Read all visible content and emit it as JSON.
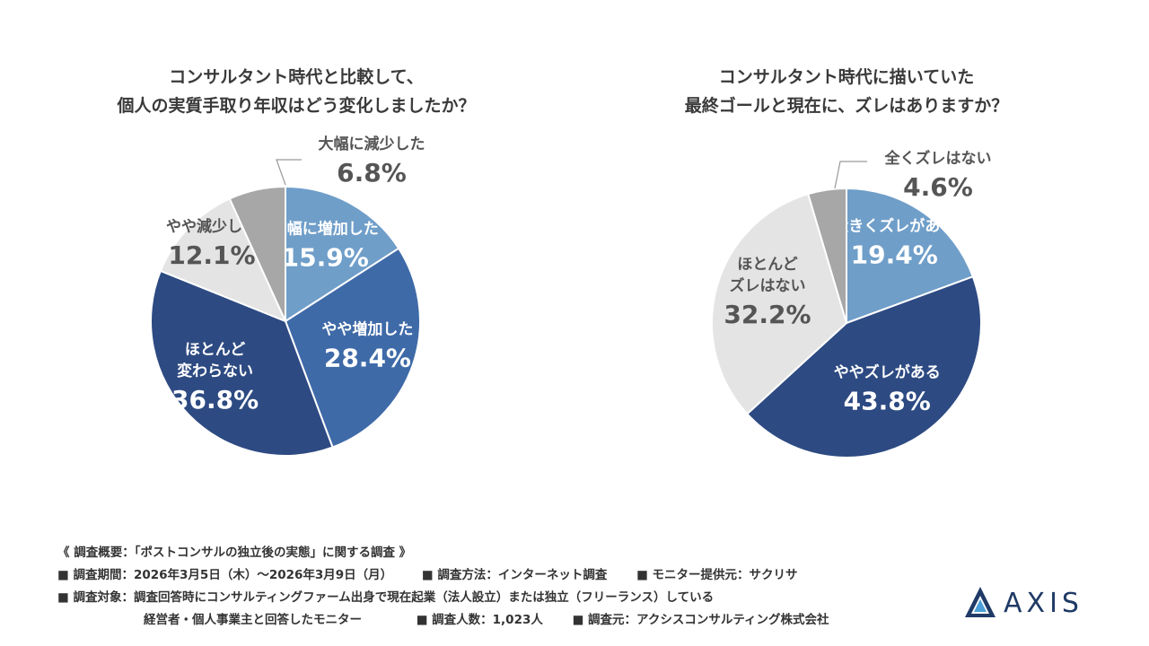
{
  "chart_data": [
    {
      "type": "pie",
      "title_lines": [
        "コンサルタント時代と比較して、",
        "個人の実質手取り年収はどう変化しましたか？"
      ],
      "slices": [
        {
          "label": "大幅に増加した",
          "value": 15.9,
          "display": "15.9%",
          "color": "#6f9ec9"
        },
        {
          "label": "やや増加した",
          "value": 28.4,
          "display": "28.4%",
          "color": "#3f6aa8"
        },
        {
          "label": "ほとんど\n変わらない",
          "value": 36.8,
          "display": "36.8%",
          "color": "#2d4a82"
        },
        {
          "label": "やや減少した",
          "value": 12.1,
          "display": "12.1%",
          "color": "#e4e4e4"
        },
        {
          "label": "大幅に減少した",
          "value": 6.8,
          "display": "6.8%",
          "color": "#a7a7a7"
        }
      ]
    },
    {
      "type": "pie",
      "title_lines": [
        "コンサルタント時代に描いていた",
        "最終ゴールと現在に、ズレはありますか？"
      ],
      "slices": [
        {
          "label": "大きくズレがある",
          "value": 19.4,
          "display": "19.4%",
          "color": "#6f9ec9"
        },
        {
          "label": "ややズレがある",
          "value": 43.8,
          "display": "43.8%",
          "color": "#2d4a82"
        },
        {
          "label": "ほとんど\nズレはない",
          "value": 32.2,
          "display": "32.2%",
          "color": "#e4e4e4"
        },
        {
          "label": "全くズレはない",
          "value": 4.6,
          "display": "4.6%",
          "color": "#a7a7a7"
        }
      ]
    }
  ],
  "footer": {
    "line1": "《 調査概要：「ポストコンサルの独立後の実態」に関する調査 》",
    "period": "■ 調査期間：2026年3月5日（木）〜2026年3月9日（月）",
    "method": "■ 調査方法：インターネット調査",
    "provider": "■ モニター提供元：サクリサ",
    "target": "■ 調査対象：調査回答時にコンサルティングファーム出身で現在起業（法人設立）または独立（フリーランス）している",
    "target_cont": "経営者・個人事業主と回答したモニター",
    "count": "■ 調査人数：1,023人",
    "source": "■ 調査元：アクシスコンサルティング株式会社"
  },
  "logo": {
    "text": "AXIS",
    "color": "#1f3a66",
    "accent": "#4a9fd8"
  }
}
